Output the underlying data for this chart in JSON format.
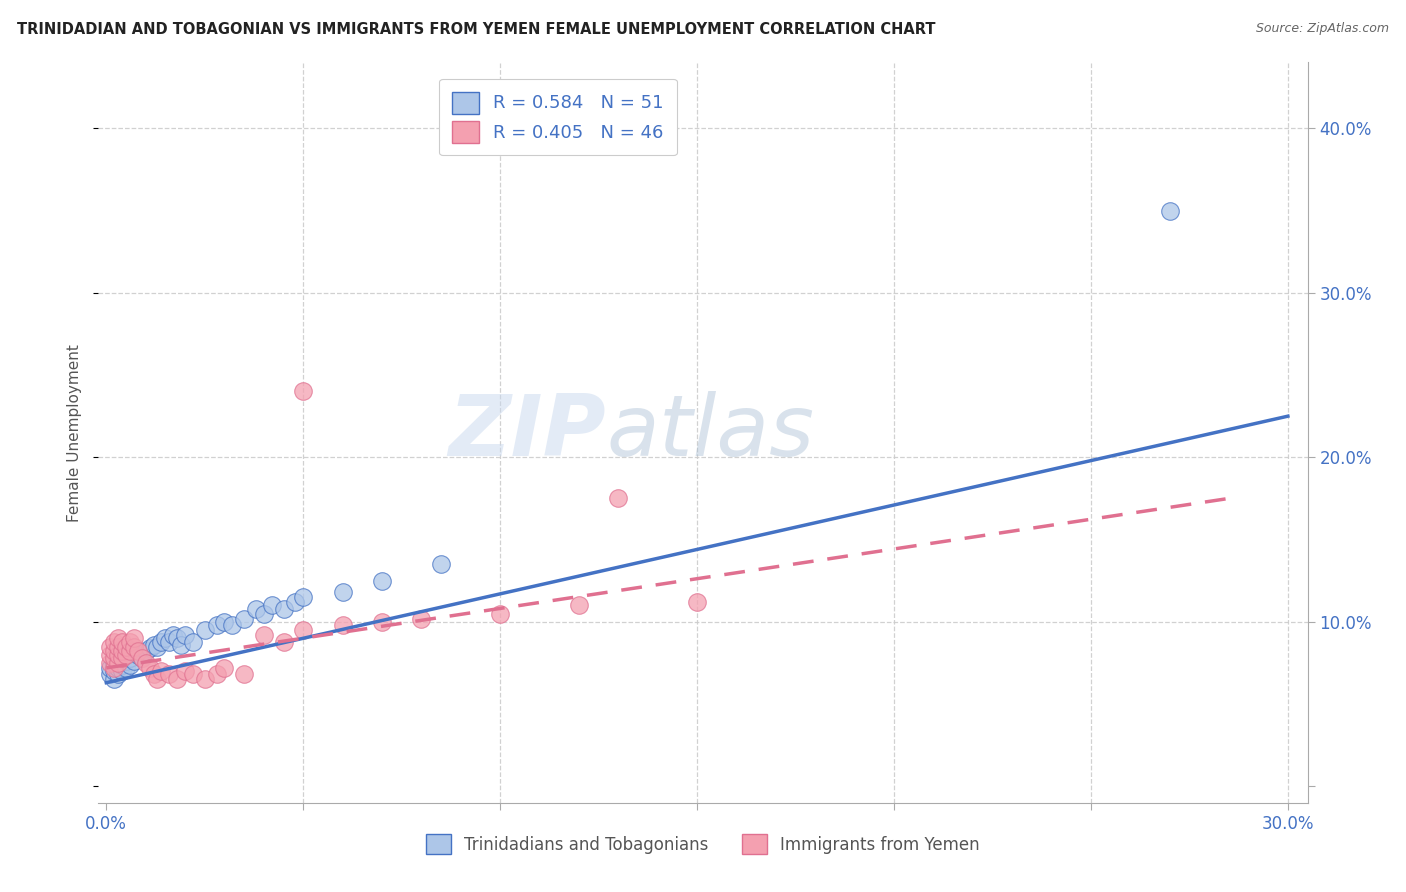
{
  "title": "TRINIDADIAN AND TOBAGONIAN VS IMMIGRANTS FROM YEMEN FEMALE UNEMPLOYMENT CORRELATION CHART",
  "source": "Source: ZipAtlas.com",
  "ylabel": "Female Unemployment",
  "legend_blue_label": "R = 0.584   N = 51",
  "legend_pink_label": "R = 0.405   N = 46",
  "legend_bottom_blue": "Trinidadians and Tobagonians",
  "legend_bottom_pink": "Immigrants from Yemen",
  "blue_color": "#adc6e8",
  "blue_line_color": "#4472c4",
  "pink_color": "#f4a0b0",
  "pink_line_color": "#e07090",
  "blue_scatter": [
    [
      0.001,
      0.068
    ],
    [
      0.001,
      0.072
    ],
    [
      0.002,
      0.065
    ],
    [
      0.002,
      0.07
    ],
    [
      0.002,
      0.075
    ],
    [
      0.002,
      0.078
    ],
    [
      0.003,
      0.068
    ],
    [
      0.003,
      0.072
    ],
    [
      0.003,
      0.076
    ],
    [
      0.003,
      0.08
    ],
    [
      0.004,
      0.07
    ],
    [
      0.004,
      0.074
    ],
    [
      0.004,
      0.078
    ],
    [
      0.004,
      0.082
    ],
    [
      0.005,
      0.072
    ],
    [
      0.005,
      0.076
    ],
    [
      0.005,
      0.08
    ],
    [
      0.006,
      0.074
    ],
    [
      0.006,
      0.078
    ],
    [
      0.006,
      0.082
    ],
    [
      0.007,
      0.076
    ],
    [
      0.007,
      0.082
    ],
    [
      0.008,
      0.08
    ],
    [
      0.009,
      0.078
    ],
    [
      0.01,
      0.082
    ],
    [
      0.011,
      0.084
    ],
    [
      0.012,
      0.086
    ],
    [
      0.013,
      0.085
    ],
    [
      0.014,
      0.088
    ],
    [
      0.015,
      0.09
    ],
    [
      0.016,
      0.088
    ],
    [
      0.017,
      0.092
    ],
    [
      0.018,
      0.09
    ],
    [
      0.019,
      0.086
    ],
    [
      0.02,
      0.092
    ],
    [
      0.022,
      0.088
    ],
    [
      0.025,
      0.095
    ],
    [
      0.028,
      0.098
    ],
    [
      0.03,
      0.1
    ],
    [
      0.032,
      0.098
    ],
    [
      0.035,
      0.102
    ],
    [
      0.038,
      0.108
    ],
    [
      0.04,
      0.105
    ],
    [
      0.042,
      0.11
    ],
    [
      0.045,
      0.108
    ],
    [
      0.048,
      0.112
    ],
    [
      0.05,
      0.115
    ],
    [
      0.06,
      0.118
    ],
    [
      0.07,
      0.125
    ],
    [
      0.085,
      0.135
    ],
    [
      0.27,
      0.35
    ]
  ],
  "pink_scatter": [
    [
      0.001,
      0.075
    ],
    [
      0.001,
      0.08
    ],
    [
      0.001,
      0.085
    ],
    [
      0.002,
      0.072
    ],
    [
      0.002,
      0.078
    ],
    [
      0.002,
      0.082
    ],
    [
      0.002,
      0.088
    ],
    [
      0.003,
      0.075
    ],
    [
      0.003,
      0.08
    ],
    [
      0.003,
      0.085
    ],
    [
      0.003,
      0.09
    ],
    [
      0.004,
      0.078
    ],
    [
      0.004,
      0.082
    ],
    [
      0.004,
      0.088
    ],
    [
      0.005,
      0.08
    ],
    [
      0.005,
      0.085
    ],
    [
      0.006,
      0.082
    ],
    [
      0.006,
      0.088
    ],
    [
      0.007,
      0.085
    ],
    [
      0.007,
      0.09
    ],
    [
      0.008,
      0.082
    ],
    [
      0.009,
      0.078
    ],
    [
      0.01,
      0.075
    ],
    [
      0.011,
      0.072
    ],
    [
      0.012,
      0.068
    ],
    [
      0.013,
      0.065
    ],
    [
      0.014,
      0.07
    ],
    [
      0.016,
      0.068
    ],
    [
      0.018,
      0.065
    ],
    [
      0.02,
      0.07
    ],
    [
      0.022,
      0.068
    ],
    [
      0.025,
      0.065
    ],
    [
      0.028,
      0.068
    ],
    [
      0.03,
      0.072
    ],
    [
      0.035,
      0.068
    ],
    [
      0.04,
      0.092
    ],
    [
      0.045,
      0.088
    ],
    [
      0.05,
      0.095
    ],
    [
      0.06,
      0.098
    ],
    [
      0.07,
      0.1
    ],
    [
      0.08,
      0.102
    ],
    [
      0.1,
      0.105
    ],
    [
      0.12,
      0.11
    ],
    [
      0.15,
      0.112
    ],
    [
      0.05,
      0.24
    ],
    [
      0.13,
      0.175
    ]
  ],
  "blue_line": {
    "x0": 0.0,
    "y0": 0.063,
    "x1": 0.3,
    "y1": 0.225
  },
  "pink_line": {
    "x0": 0.0,
    "y0": 0.072,
    "x1": 0.285,
    "y1": 0.175
  },
  "xlim": [
    -0.002,
    0.305
  ],
  "ylim": [
    -0.01,
    0.44
  ],
  "x_ticks": [
    0.0,
    0.05,
    0.1,
    0.15,
    0.2,
    0.25,
    0.3
  ],
  "y_ticks": [
    0.0,
    0.1,
    0.2,
    0.3,
    0.4
  ],
  "watermark_zip": "ZIP",
  "watermark_atlas": "atlas",
  "background_color": "#ffffff",
  "grid_color": "#cccccc"
}
